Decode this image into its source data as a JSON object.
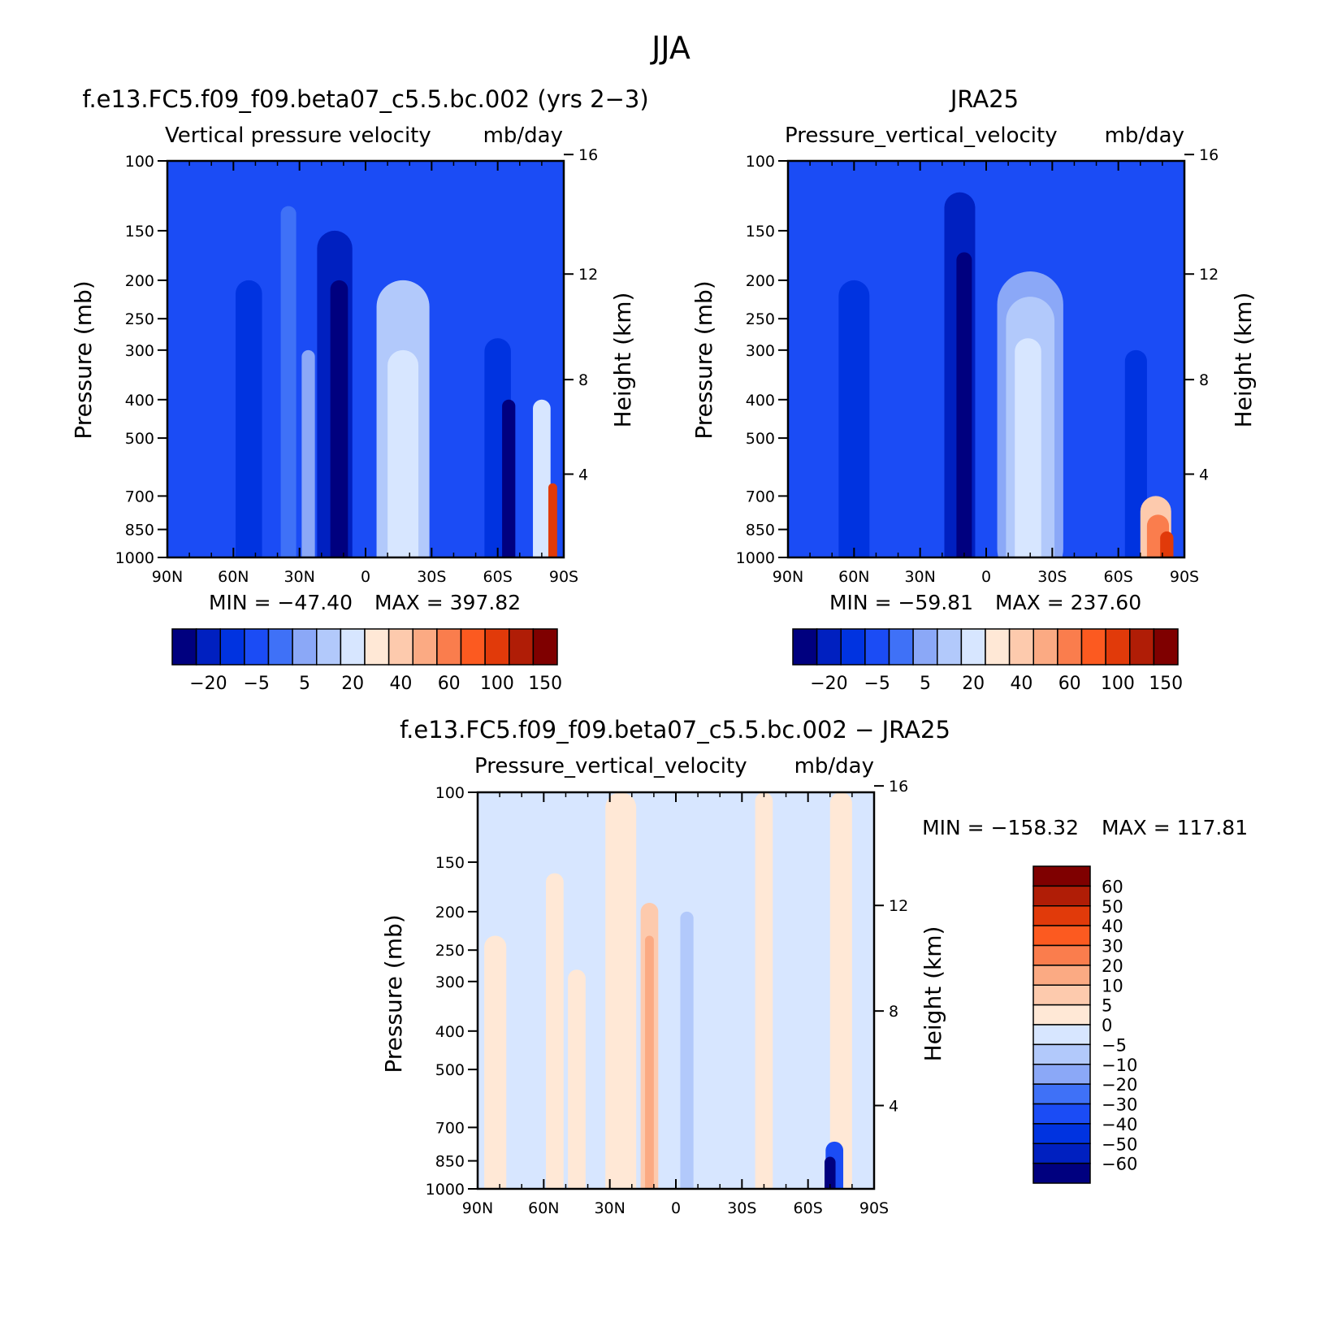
{
  "figure_title": "JJA",
  "colors": {
    "cool": [
      "#00007f",
      "#0020c0",
      "#0033e0",
      "#1b4cf5",
      "#3f71f7",
      "#8ba8f7",
      "#b2c9fb",
      "#d7e6ff"
    ],
    "warm": [
      "#ffe8d6",
      "#fdcaad",
      "#fbaa83",
      "#fa7d4d",
      "#fc5a20",
      "#e13a0a",
      "#b01d06",
      "#7f0000"
    ],
    "white": "#ffffff"
  },
  "chart_data": [
    {
      "type": "heatmap",
      "title": "f.e13.FC5.f09_f09.beta07_c5.5.bc.002 (yrs 2−3)",
      "subtitle": "Vertical pressure velocity",
      "units": "mb/day",
      "ylabel": "Pressure (mb)",
      "ylabel_right": "Height (km)",
      "x_ticks": [
        "90N",
        "60N",
        "30N",
        "0",
        "30S",
        "60S",
        "90S"
      ],
      "x_range": [
        90,
        -90
      ],
      "y_ticks": [
        100,
        150,
        200,
        250,
        300,
        400,
        500,
        700,
        850,
        1000
      ],
      "y_range": [
        100,
        1000
      ],
      "y_scale": "log",
      "y_right_ticks": [
        16,
        12,
        8,
        4
      ],
      "min_text": "MIN = −47.40",
      "max_text": "MAX = 397.82",
      "colorbar_labels": [
        "−20",
        "−5",
        "5",
        "20",
        "40",
        "60",
        "100",
        "150"
      ],
      "colorbar_orientation": "horizontal",
      "features": [
        {
          "lat": 53,
          "p_top": 200,
          "width": 12,
          "level": 2
        },
        {
          "lat": 35,
          "p_top": 130,
          "width": 7,
          "level": 4
        },
        {
          "lat": 26,
          "p_top": 300,
          "width": 6,
          "level": 5
        },
        {
          "lat": 14,
          "p_top": 150,
          "width": 16,
          "level": 1
        },
        {
          "lat": 12,
          "p_top": 200,
          "width": 8,
          "level": 0
        },
        {
          "lat": -17,
          "p_top": 200,
          "width": 24,
          "level": 6
        },
        {
          "lat": -17,
          "p_top": 300,
          "width": 14,
          "level": 7
        },
        {
          "lat": -60,
          "p_top": 280,
          "width": 12,
          "level": 2
        },
        {
          "lat": -65,
          "p_top": 400,
          "width": 6,
          "level": 0
        },
        {
          "lat": -80,
          "p_top": 400,
          "width": 8,
          "level": 7
        },
        {
          "lat": -85,
          "p_top": 650,
          "width": 4,
          "level": 13
        }
      ]
    },
    {
      "type": "heatmap",
      "title": "JRA25",
      "subtitle": "Pressure_vertical_velocity",
      "units": "mb/day",
      "ylabel": "Pressure (mb)",
      "ylabel_right": "Height (km)",
      "x_ticks": [
        "90N",
        "60N",
        "30N",
        "0",
        "30S",
        "60S",
        "90S"
      ],
      "x_range": [
        90,
        -90
      ],
      "y_ticks": [
        100,
        150,
        200,
        250,
        300,
        400,
        500,
        700,
        850,
        1000
      ],
      "y_range": [
        100,
        1000
      ],
      "y_scale": "log",
      "y_right_ticks": [
        16,
        12,
        8,
        4
      ],
      "min_text": "MIN = −59.81",
      "max_text": "MAX = 237.60",
      "colorbar_labels": [
        "−20",
        "−5",
        "5",
        "20",
        "40",
        "60",
        "100",
        "150"
      ],
      "colorbar_orientation": "horizontal",
      "features": [
        {
          "lat": 60,
          "p_top": 200,
          "width": 14,
          "level": 2
        },
        {
          "lat": 12,
          "p_top": 120,
          "width": 14,
          "level": 1
        },
        {
          "lat": 10,
          "p_top": 170,
          "width": 7,
          "level": 0
        },
        {
          "lat": -20,
          "p_top": 190,
          "width": 30,
          "level": 5
        },
        {
          "lat": -20,
          "p_top": 220,
          "width": 22,
          "level": 6
        },
        {
          "lat": -19,
          "p_top": 280,
          "width": 12,
          "level": 7
        },
        {
          "lat": -68,
          "p_top": 300,
          "width": 10,
          "level": 2
        },
        {
          "lat": -77,
          "p_top": 700,
          "width": 14,
          "level": 9
        },
        {
          "lat": -78,
          "p_top": 780,
          "width": 10,
          "level": 11
        },
        {
          "lat": -82,
          "p_top": 860,
          "width": 6,
          "level": 13
        }
      ]
    },
    {
      "type": "heatmap",
      "title": "f.e13.FC5.f09_f09.beta07_c5.5.bc.002 − JRA25",
      "subtitle": "Pressure_vertical_velocity",
      "units": "mb/day",
      "ylabel": "Pressure (mb)",
      "ylabel_right": "Height (km)",
      "x_ticks": [
        "90N",
        "60N",
        "30N",
        "0",
        "30S",
        "60S",
        "90S"
      ],
      "x_range": [
        90,
        -90
      ],
      "y_ticks": [
        100,
        150,
        200,
        250,
        300,
        400,
        500,
        700,
        850,
        1000
      ],
      "y_range": [
        100,
        1000
      ],
      "y_scale": "log",
      "y_right_ticks": [
        16,
        12,
        8,
        4
      ],
      "min_text": "MIN = −158.32",
      "max_text": "MAX = 117.81",
      "colorbar_labels": [
        "60",
        "50",
        "40",
        "30",
        "20",
        "10",
        "5",
        "0",
        "−5",
        "−10",
        "−20",
        "−30",
        "−40",
        "−50",
        "−60"
      ],
      "colorbar_orientation": "vertical",
      "features": [
        {
          "lat": 82,
          "p_top": 230,
          "width": 10,
          "level": 8
        },
        {
          "lat": 55,
          "p_top": 160,
          "width": 8,
          "level": 8
        },
        {
          "lat": 45,
          "p_top": 280,
          "width": 8,
          "level": 8
        },
        {
          "lat": 25,
          "p_top": 100,
          "width": 14,
          "level": 8
        },
        {
          "lat": 12,
          "p_top": 190,
          "width": 8,
          "level": 9
        },
        {
          "lat": 12,
          "p_top": 230,
          "width": 4,
          "level": 10
        },
        {
          "lat": -5,
          "p_top": 200,
          "width": 6,
          "level": 6
        },
        {
          "lat": -40,
          "p_top": 100,
          "width": 8,
          "level": 8
        },
        {
          "lat": -75,
          "p_top": 100,
          "width": 10,
          "level": 8
        },
        {
          "lat": -72,
          "p_top": 760,
          "width": 8,
          "level": 3
        },
        {
          "lat": -70,
          "p_top": 830,
          "width": 5,
          "level": 0
        }
      ]
    }
  ]
}
